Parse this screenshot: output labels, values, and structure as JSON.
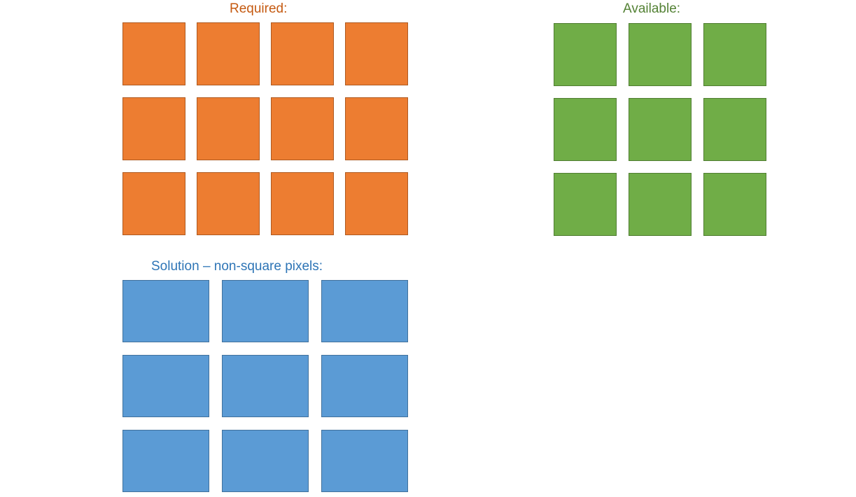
{
  "labels": {
    "required": "Required:",
    "available": "Available:",
    "solution": "Solution – non-square pixels:"
  },
  "colors": {
    "required_fill": "#ED7D31",
    "required_border": "#AE5A21",
    "required_text": "#C55A11",
    "available_fill": "#70AD47",
    "available_border": "#507E32",
    "available_text": "#548235",
    "solution_fill": "#5B9BD5",
    "solution_border": "#41719C",
    "solution_text": "#2E75B6"
  },
  "grids": {
    "required": {
      "rows": 3,
      "cols": 4
    },
    "available": {
      "rows": 3,
      "cols": 3
    },
    "solution": {
      "rows": 3,
      "cols": 3
    }
  }
}
